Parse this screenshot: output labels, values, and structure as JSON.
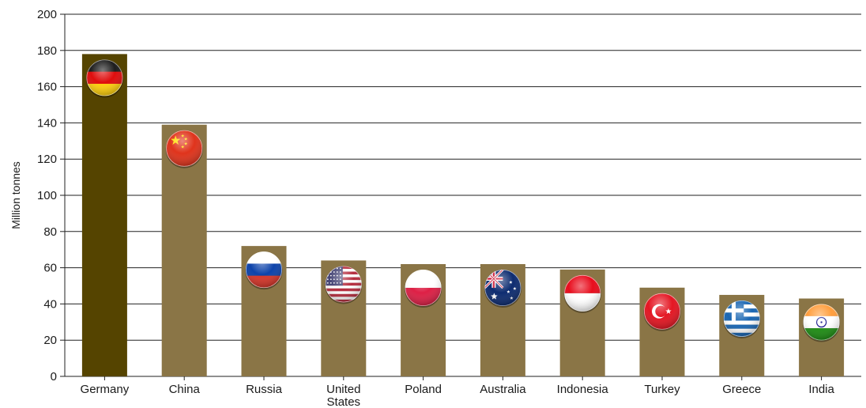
{
  "chart_data": {
    "type": "bar",
    "title": "",
    "xlabel": "",
    "ylabel": "Million tonnes",
    "ylim": [
      0,
      200
    ],
    "yticks": [
      0,
      20,
      40,
      60,
      80,
      100,
      120,
      140,
      160,
      180,
      200
    ],
    "grid": true,
    "categories": [
      [
        "Germany"
      ],
      [
        "China"
      ],
      [
        "Russia"
      ],
      [
        "United",
        "States"
      ],
      [
        "Poland"
      ],
      [
        "Australia"
      ],
      [
        "Indonesia"
      ],
      [
        "Turkey"
      ],
      [
        "Greece"
      ],
      [
        "India"
      ]
    ],
    "values": [
      178,
      139,
      72,
      64,
      62,
      62,
      59,
      49,
      45,
      43
    ],
    "colors": {
      "highlight_bar": "#554400",
      "bar": "#8a7546",
      "grid": "#222222"
    },
    "flags": [
      "germany-flag-icon",
      "china-flag-icon",
      "russia-flag-icon",
      "united-states-flag-icon",
      "poland-flag-icon",
      "australia-flag-icon",
      "indonesia-flag-icon",
      "turkey-flag-icon",
      "greece-flag-icon",
      "india-flag-icon"
    ]
  }
}
